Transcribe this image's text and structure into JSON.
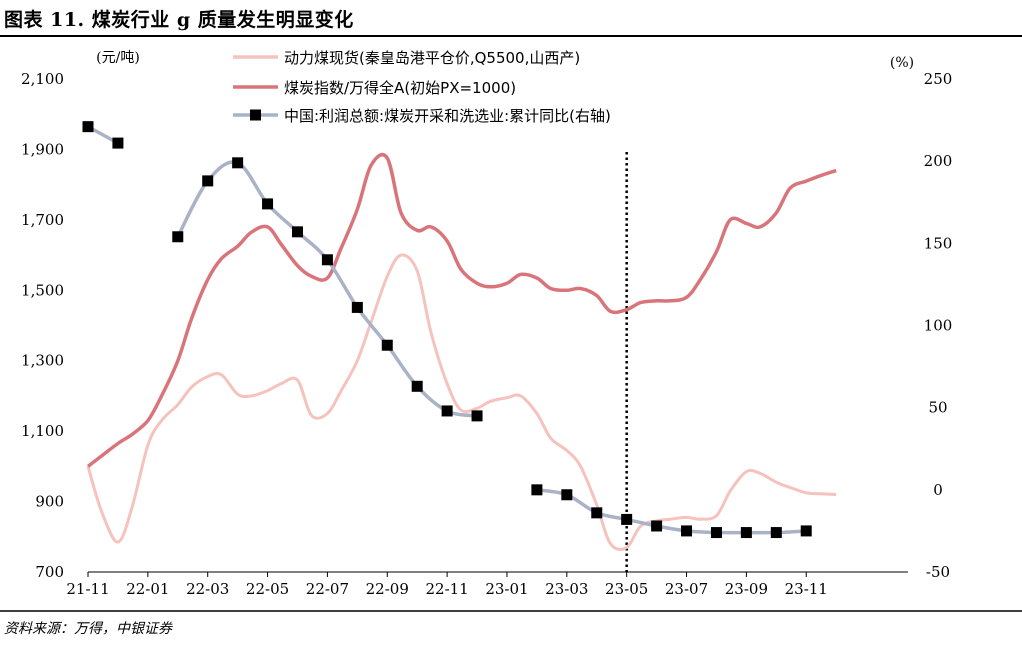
{
  "figure": {
    "title": "图表 11. 煤炭行业 g 质量发生明显变化",
    "source": "资料来源：万得，中银证券"
  },
  "chart_data": {
    "type": "line",
    "left_unit": "(元/吨)",
    "right_unit": "(%)",
    "x_tick_labels": [
      "21-11",
      "22-01",
      "22-03",
      "22-05",
      "22-07",
      "22-09",
      "22-11",
      "23-01",
      "23-03",
      "23-05",
      "23-07",
      "23-09",
      "23-11"
    ],
    "left_ticks": [
      "2,100",
      "1,900",
      "1,700",
      "1,500",
      "1,300",
      "1,100",
      "900",
      "700"
    ],
    "right_ticks": [
      "250",
      "200",
      "150",
      "100",
      "50",
      "0",
      "-50"
    ],
    "ylim_left": [
      700,
      2100
    ],
    "ylim_right": [
      -50,
      250
    ],
    "marker_line_at": "23-05",
    "grid": "none",
    "legend_position": "top",
    "colors": {
      "coal_price": "#f5c2bd",
      "coal_index": "#d9757a",
      "profit_yoy": "#a9b2c6",
      "marker": "#000000",
      "axis": "#000000"
    },
    "series": [
      {
        "name": "动力煤现货(秦皇岛港平仓价,Q5500,山西产)",
        "axis": "left",
        "style": "smooth-line",
        "x": [
          "2021-11-01",
          "2021-11-15",
          "2021-12-01",
          "2021-12-15",
          "2022-01-01",
          "2022-01-15",
          "2022-02-01",
          "2022-02-15",
          "2022-03-01",
          "2022-03-15",
          "2022-04-01",
          "2022-04-15",
          "2022-05-01",
          "2022-05-15",
          "2022-06-01",
          "2022-06-15",
          "2022-07-01",
          "2022-07-15",
          "2022-08-01",
          "2022-08-15",
          "2022-09-01",
          "2022-09-15",
          "2022-10-01",
          "2022-10-15",
          "2022-11-01",
          "2022-11-15",
          "2022-12-01",
          "2022-12-15",
          "2023-01-01",
          "2023-01-15",
          "2023-02-01",
          "2023-02-15",
          "2023-03-01",
          "2023-03-15",
          "2023-04-01",
          "2023-04-15",
          "2023-05-01",
          "2023-05-15",
          "2023-06-01",
          "2023-06-15",
          "2023-07-01",
          "2023-07-15",
          "2023-08-01",
          "2023-08-15",
          "2023-09-01",
          "2023-09-15",
          "2023-10-01",
          "2023-10-15",
          "2023-11-01",
          "2023-11-15",
          "2023-12-01"
        ],
        "values": [
          1000,
          870,
          785,
          880,
          1060,
          1130,
          1175,
          1225,
          1255,
          1260,
          1205,
          1200,
          1215,
          1235,
          1245,
          1145,
          1150,
          1215,
          1300,
          1410,
          1540,
          1600,
          1555,
          1380,
          1235,
          1160,
          1165,
          1185,
          1195,
          1200,
          1150,
          1080,
          1045,
          1000,
          890,
          780,
          770,
          830,
          845,
          850,
          855,
          850,
          860,
          930,
          985,
          980,
          955,
          940,
          925,
          922,
          920
        ]
      },
      {
        "name": "煤炭指数/万得全A(初始PX=1000)",
        "axis": "left",
        "style": "smooth-line",
        "x": [
          "2021-11-01",
          "2021-11-15",
          "2021-12-01",
          "2021-12-15",
          "2022-01-01",
          "2022-01-15",
          "2022-02-01",
          "2022-02-15",
          "2022-03-01",
          "2022-03-15",
          "2022-04-01",
          "2022-04-15",
          "2022-05-01",
          "2022-05-15",
          "2022-06-01",
          "2022-06-15",
          "2022-07-01",
          "2022-07-15",
          "2022-08-01",
          "2022-08-15",
          "2022-09-01",
          "2022-09-15",
          "2022-10-01",
          "2022-10-15",
          "2022-11-01",
          "2022-11-15",
          "2022-12-01",
          "2022-12-15",
          "2023-01-01",
          "2023-01-15",
          "2023-02-01",
          "2023-02-15",
          "2023-03-01",
          "2023-03-15",
          "2023-04-01",
          "2023-04-15",
          "2023-05-01",
          "2023-05-15",
          "2023-06-01",
          "2023-06-15",
          "2023-07-01",
          "2023-07-15",
          "2023-08-01",
          "2023-08-15",
          "2023-09-01",
          "2023-09-15",
          "2023-10-01",
          "2023-10-15",
          "2023-11-01",
          "2023-11-15",
          "2023-12-01"
        ],
        "values": [
          1000,
          1030,
          1065,
          1090,
          1130,
          1200,
          1300,
          1420,
          1530,
          1590,
          1625,
          1665,
          1680,
          1630,
          1570,
          1540,
          1535,
          1620,
          1730,
          1855,
          1875,
          1720,
          1670,
          1680,
          1640,
          1560,
          1520,
          1510,
          1520,
          1545,
          1535,
          1505,
          1500,
          1505,
          1485,
          1440,
          1445,
          1465,
          1470,
          1470,
          1480,
          1530,
          1610,
          1700,
          1690,
          1680,
          1720,
          1790,
          1810,
          1825,
          1840
        ]
      },
      {
        "name": "中国:利润总额:煤炭开采和洗选业:累计同比(右轴)",
        "axis": "right",
        "style": "line-with-square-markers",
        "x": [
          "2021-11-01",
          "2021-12-01",
          "2022-02-01",
          "2022-03-01",
          "2022-04-01",
          "2022-05-01",
          "2022-06-01",
          "2022-07-01",
          "2022-08-01",
          "2022-09-01",
          "2022-10-01",
          "2022-11-01",
          "2022-12-01",
          "2023-02-01",
          "2023-03-01",
          "2023-04-01",
          "2023-05-01",
          "2023-06-01",
          "2023-07-01",
          "2023-08-01",
          "2023-09-01",
          "2023-10-01",
          "2023-11-01"
        ],
        "values": [
          221,
          211,
          154,
          188,
          199,
          174,
          157,
          140,
          111,
          88,
          63,
          48,
          45,
          0,
          -3,
          -14,
          -18,
          -22,
          -25,
          -26,
          -26,
          -26,
          -25
        ]
      }
    ]
  }
}
